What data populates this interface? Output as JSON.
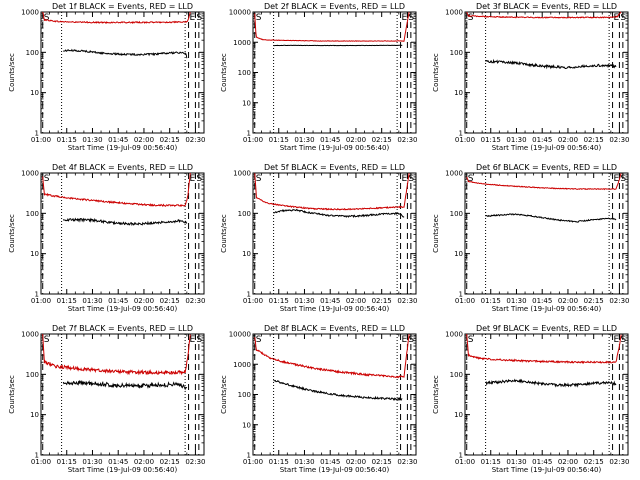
{
  "colors": {
    "events": "#000000",
    "lld": "#cc0000",
    "axes": "#000000"
  },
  "common": {
    "x_tick_labels": [
      "01:00",
      "01:15",
      "01:30",
      "01:45",
      "02:00",
      "02:15",
      "02:30"
    ],
    "xlim_minutes": [
      60,
      155
    ],
    "ylabel": "Counts/sec",
    "xlabel": "Start Time (19-Jul-09 00:56:40)",
    "scale_y": "log",
    "marker_labels": [
      "S",
      "E",
      "S"
    ],
    "marker_times_min": [
      61,
      146,
      150
    ],
    "dotted_times_min": [
      72,
      144
    ],
    "dashed_times_min": [
      61,
      146,
      150,
      152
    ]
  },
  "chart_data": [
    {
      "type": "line",
      "panel": 1,
      "title": "Det 1f BLACK = Events, RED = LLD",
      "xlabel": "Start Time (19-Jul-09 00:56:40)",
      "ylabel": "Counts/sec",
      "ylim": [
        1,
        1000
      ],
      "y_tick_labels": [
        "1",
        "10",
        "100",
        "1000"
      ],
      "x_range_min": [
        61,
        147
      ],
      "series": [
        {
          "name": "LLD",
          "color": "#cc0000",
          "x": [
            61,
            62,
            70,
            80,
            95,
            110,
            125,
            138,
            144,
            145.5,
            146.5,
            147
          ],
          "y": [
            1000,
            640,
            580,
            560,
            550,
            550,
            555,
            560,
            560,
            600,
            800,
            1000
          ],
          "noise": 0.015
        },
        {
          "name": "Events",
          "color": "#000000",
          "x": [
            73,
            76,
            85,
            95,
            105,
            118,
            128,
            136,
            143,
            144.5,
            145
          ],
          "y": [
            108,
            112,
            108,
            96,
            90,
            88,
            91,
            97,
            98,
            95,
            70
          ],
          "noise": 0.02
        }
      ]
    },
    {
      "type": "line",
      "panel": 2,
      "title": "Det 2f BLACK = Events, RED = LLD",
      "xlabel": "Start Time (19-Jul-09 00:56:40)",
      "ylabel": "Counts/sec",
      "ylim": [
        1,
        10000
      ],
      "y_tick_labels": [
        "1",
        "10",
        "100",
        "1000",
        "10000"
      ],
      "x_range_min": [
        61,
        151
      ],
      "series": [
        {
          "name": "LLD",
          "color": "#cc0000",
          "x": [
            61,
            61.8,
            66,
            80,
            100,
            120,
            140,
            148,
            149.5,
            151
          ],
          "y": [
            9000,
            1500,
            1200,
            1150,
            1100,
            1100,
            1100,
            1100,
            3500,
            10000
          ],
          "noise": 0.008
        },
        {
          "name": "Events",
          "color": "#000000",
          "x": [
            72,
            80,
            100,
            120,
            140,
            147
          ],
          "y": [
            780,
            790,
            780,
            780,
            790,
            790
          ],
          "noise": 0.005
        }
      ]
    },
    {
      "type": "line",
      "panel": 3,
      "title": "Det 3f BLACK = Events, RED = LLD",
      "xlabel": "Start Time (19-Jul-09 00:56:40)",
      "ylabel": "Counts/sec",
      "ylim": [
        1,
        1000
      ],
      "y_tick_labels": [
        "1",
        "10",
        "100",
        "1000"
      ],
      "x_range_min": [
        61,
        151
      ],
      "series": [
        {
          "name": "LLD",
          "color": "#cc0000",
          "x": [
            61,
            62,
            75,
            90,
            105,
            120,
            135,
            146,
            148.5,
            151
          ],
          "y": [
            1000,
            800,
            760,
            740,
            730,
            730,
            735,
            740,
            760,
            1000
          ],
          "noise": 0.012
        },
        {
          "name": "Events",
          "color": "#000000",
          "x": [
            72,
            80,
            90,
            100,
            110,
            120,
            130,
            140,
            148
          ],
          "y": [
            60,
            58,
            54,
            48,
            44,
            42,
            46,
            48,
            45
          ],
          "noise": 0.03
        }
      ]
    },
    {
      "type": "line",
      "panel": 4,
      "title": "Det 4f BLACK = Events, RED = LLD",
      "xlabel": "Start Time (19-Jul-09 00:56:40)",
      "ylabel": "Counts/sec",
      "ylim": [
        1,
        1000
      ],
      "y_tick_labels": [
        "1",
        "10",
        "100",
        "1000"
      ],
      "x_range_min": [
        61,
        147
      ],
      "series": [
        {
          "name": "LLD",
          "color": "#cc0000",
          "x": [
            61,
            62,
            70,
            80,
            95,
            110,
            125,
            138,
            144,
            145.5,
            147
          ],
          "y": [
            800,
            300,
            260,
            230,
            200,
            175,
            160,
            155,
            160,
            250,
            1000
          ],
          "noise": 0.02
        },
        {
          "name": "Events",
          "color": "#000000",
          "x": [
            73,
            80,
            90,
            100,
            110,
            120,
            130,
            140,
            145
          ],
          "y": [
            68,
            70,
            68,
            60,
            55,
            55,
            60,
            65,
            58
          ],
          "noise": 0.03
        }
      ]
    },
    {
      "type": "line",
      "panel": 5,
      "title": "Det 5f BLACK = Events, RED = LLD",
      "xlabel": "Start Time (19-Jul-09 00:56:40)",
      "ylabel": "Counts/sec",
      "ylim": [
        1,
        1000
      ],
      "y_tick_labels": [
        "1",
        "10",
        "100",
        "1000"
      ],
      "x_range_min": [
        61,
        151
      ],
      "series": [
        {
          "name": "LLD",
          "color": "#cc0000",
          "x": [
            61,
            62,
            68,
            80,
            95,
            110,
            125,
            140,
            148,
            150,
            151
          ],
          "y": [
            1000,
            250,
            180,
            150,
            130,
            125,
            130,
            140,
            145,
            500,
            1000
          ],
          "noise": 0.015
        },
        {
          "name": "Events",
          "color": "#000000",
          "x": [
            72,
            78,
            85,
            95,
            105,
            115,
            125,
            135,
            145,
            148
          ],
          "y": [
            105,
            118,
            120,
            100,
            88,
            84,
            88,
            95,
            100,
            82
          ],
          "noise": 0.02
        }
      ]
    },
    {
      "type": "line",
      "panel": 6,
      "title": "Det 6f BLACK = Events, RED = LLD",
      "xlabel": "Start Time (19-Jul-09 00:56:40)",
      "ylabel": "Counts/sec",
      "ylim": [
        1,
        1000
      ],
      "y_tick_labels": [
        "1",
        "10",
        "100",
        "1000"
      ],
      "x_range_min": [
        61,
        151
      ],
      "series": [
        {
          "name": "LLD",
          "color": "#cc0000",
          "x": [
            61,
            62,
            70,
            85,
            100,
            115,
            130,
            145,
            148,
            150,
            151
          ],
          "y": [
            800,
            620,
            540,
            480,
            440,
            410,
            400,
            400,
            400,
            700,
            1000
          ],
          "noise": 0.01
        },
        {
          "name": "Events",
          "color": "#000000",
          "x": [
            72,
            80,
            88,
            95,
            105,
            115,
            125,
            135,
            145,
            148
          ],
          "y": [
            85,
            90,
            95,
            90,
            78,
            68,
            62,
            70,
            75,
            70
          ],
          "noise": 0.015
        }
      ]
    },
    {
      "type": "line",
      "panel": 7,
      "title": "Det 7f BLACK = Events, RED = LLD",
      "xlabel": "Start Time (19-Jul-09 00:56:40)",
      "ylabel": "Counts/sec",
      "ylim": [
        1,
        1000
      ],
      "y_tick_labels": [
        "1",
        "10",
        "100",
        "1000"
      ],
      "x_range_min": [
        61,
        147
      ],
      "series": [
        {
          "name": "LLD",
          "color": "#cc0000",
          "x": [
            61,
            62,
            68,
            80,
            95,
            110,
            125,
            138,
            144,
            145.5,
            147
          ],
          "y": [
            1000,
            200,
            160,
            140,
            125,
            115,
            110,
            110,
            115,
            250,
            1000
          ],
          "noise": 0.04
        },
        {
          "name": "Events",
          "color": "#000000",
          "x": [
            73,
            80,
            90,
            100,
            110,
            120,
            130,
            140,
            145
          ],
          "y": [
            58,
            62,
            60,
            55,
            52,
            52,
            55,
            56,
            45
          ],
          "noise": 0.05
        }
      ]
    },
    {
      "type": "line",
      "panel": 8,
      "title": "Det 8f BLACK = Events, RED = LLD",
      "xlabel": "Start Time (19-Jul-09 00:56:40)",
      "ylabel": "Counts/sec",
      "ylim": [
        1,
        10000
      ],
      "y_tick_labels": [
        "1",
        "10",
        "100",
        "1000",
        "10000"
      ],
      "x_range_min": [
        61,
        151
      ],
      "series": [
        {
          "name": "LLD",
          "color": "#cc0000",
          "x": [
            61,
            62,
            70,
            80,
            95,
            110,
            125,
            140,
            148,
            149.5,
            151
          ],
          "y": [
            8000,
            3000,
            1600,
            1100,
            750,
            560,
            460,
            400,
            380,
            2000,
            10000
          ],
          "noise": 0.03
        },
        {
          "name": "Events",
          "color": "#000000",
          "x": [
            72,
            76,
            85,
            95,
            110,
            125,
            140,
            147
          ],
          "y": [
            300,
            250,
            180,
            130,
            95,
            80,
            72,
            70
          ],
          "noise": 0.03
        }
      ]
    },
    {
      "type": "line",
      "panel": 9,
      "title": "Det 9f BLACK = Events, RED = LLD",
      "xlabel": "Start Time (19-Jul-09 00:56:40)",
      "ylabel": "Counts/sec",
      "ylim": [
        1,
        1000
      ],
      "y_tick_labels": [
        "1",
        "10",
        "100",
        "1000"
      ],
      "x_range_min": [
        61,
        151
      ],
      "series": [
        {
          "name": "LLD",
          "color": "#cc0000",
          "x": [
            61,
            62,
            68,
            80,
            95,
            110,
            125,
            140,
            148,
            150,
            151
          ],
          "y": [
            1000,
            300,
            250,
            230,
            215,
            205,
            200,
            200,
            200,
            500,
            1000
          ],
          "noise": 0.02
        },
        {
          "name": "Events",
          "color": "#000000",
          "x": [
            72,
            80,
            88,
            95,
            105,
            115,
            125,
            135,
            145,
            148
          ],
          "y": [
            60,
            65,
            70,
            66,
            58,
            54,
            55,
            60,
            62,
            58
          ],
          "noise": 0.03
        }
      ]
    }
  ]
}
